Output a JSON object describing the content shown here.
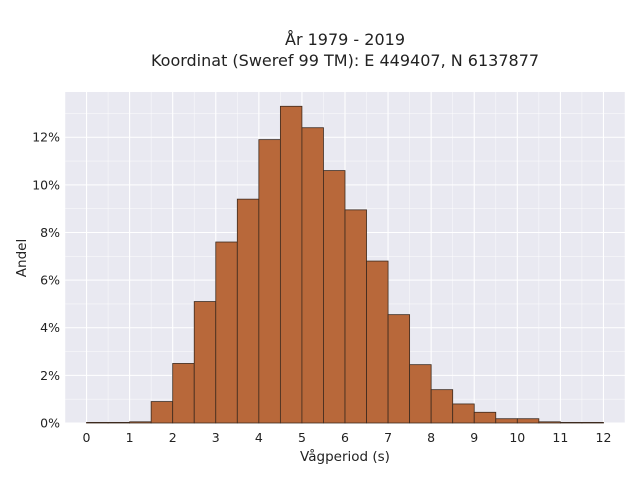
{
  "chart_data": {
    "type": "bar",
    "title": "År 1979 - 2019",
    "subtitle": "Koordinat (Sweref 99 TM): E 449407, N 6137877",
    "xlabel": "Vågperiod (s)",
    "ylabel": "Andel",
    "xlim": [
      -0.5,
      12.5
    ],
    "ylim": [
      0,
      13.9
    ],
    "x_ticks": [
      "0",
      "1",
      "2",
      "3",
      "4",
      "5",
      "6",
      "7",
      "8",
      "9",
      "10",
      "11",
      "12"
    ],
    "y_ticks": [
      "0%",
      "2%",
      "4%",
      "6%",
      "8%",
      "10%",
      "12%"
    ],
    "bin_width": 0.5,
    "bins": [
      {
        "x0": 0.0,
        "value": 0.02
      },
      {
        "x0": 0.5,
        "value": 0.0
      },
      {
        "x0": 1.0,
        "value": 0.05
      },
      {
        "x0": 1.5,
        "value": 0.9
      },
      {
        "x0": 2.0,
        "value": 2.5
      },
      {
        "x0": 2.5,
        "value": 5.1
      },
      {
        "x0": 3.0,
        "value": 7.6
      },
      {
        "x0": 3.5,
        "value": 9.4
      },
      {
        "x0": 4.0,
        "value": 11.9
      },
      {
        "x0": 4.5,
        "value": 13.3
      },
      {
        "x0": 5.0,
        "value": 12.4
      },
      {
        "x0": 5.5,
        "value": 10.6
      },
      {
        "x0": 6.0,
        "value": 8.95
      },
      {
        "x0": 6.5,
        "value": 6.8
      },
      {
        "x0": 7.0,
        "value": 4.55
      },
      {
        "x0": 7.5,
        "value": 2.45
      },
      {
        "x0": 8.0,
        "value": 1.4
      },
      {
        "x0": 8.5,
        "value": 0.8
      },
      {
        "x0": 9.0,
        "value": 0.45
      },
      {
        "x0": 9.5,
        "value": 0.18
      },
      {
        "x0": 10.0,
        "value": 0.18
      },
      {
        "x0": 10.5,
        "value": 0.05
      },
      {
        "x0": 11.0,
        "value": 0.02
      },
      {
        "x0": 11.5,
        "value": 0.01
      }
    ],
    "grid": true,
    "colors": {
      "bar_fill": "#b8683a",
      "bar_edge": "#3d2a1e",
      "plot_background": "#e9e9f1",
      "grid": "#ffffff"
    }
  }
}
